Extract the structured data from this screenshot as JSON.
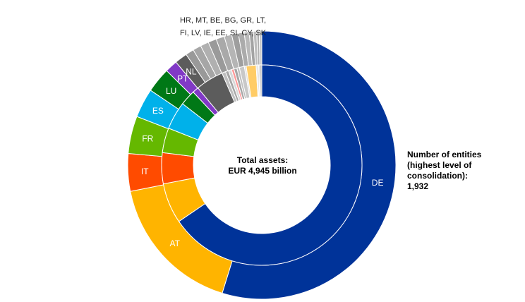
{
  "chart_data": {
    "type": "pie",
    "variant": "two-ring donut",
    "center_text": [
      "Total assets:",
      "EUR 4,945 billion"
    ],
    "side_text": [
      "Number of entities",
      "(highest level of",
      "consolidation):",
      "1,932"
    ],
    "small_countries_label": [
      "HR, MT, BE, BG, GR, LT,",
      "FI, LV, IE, EE, SI, CY, SK"
    ],
    "outer_ring": {
      "series": "Number of entities",
      "slices": [
        {
          "label": "DE",
          "value": 54.5,
          "color": "#003399",
          "labeled": true
        },
        {
          "label": "AT",
          "value": 17.0,
          "color": "#FFB400",
          "labeled": true
        },
        {
          "label": "IT",
          "value": 4.5,
          "color": "#FF4B00",
          "labeled": true
        },
        {
          "label": "FR",
          "value": 4.5,
          "color": "#65B800",
          "labeled": true
        },
        {
          "label": "ES",
          "value": 3.5,
          "color": "#00B1EA",
          "labeled": true
        },
        {
          "label": "LU",
          "value": 3.0,
          "color": "#007816",
          "labeled": true
        },
        {
          "label": "PT",
          "value": 1.5,
          "color": "#8139C6",
          "labeled": true
        },
        {
          "label": "NL",
          "value": 1.5,
          "color": "#5C5C5C",
          "labeled": true
        },
        {
          "label": "HR",
          "value": 1.0,
          "color": "#999999",
          "labeled": false
        },
        {
          "label": "MT",
          "value": 1.0,
          "color": "#A6A6A6",
          "labeled": false
        },
        {
          "label": "BE",
          "value": 1.0,
          "color": "#B0B0B0",
          "labeled": false
        },
        {
          "label": "BG",
          "value": 1.0,
          "color": "#9A9A9A",
          "labeled": false
        },
        {
          "label": "GR",
          "value": 1.0,
          "color": "#A9A9A9",
          "labeled": false
        },
        {
          "label": "LT",
          "value": 0.9,
          "color": "#B5B5B5",
          "labeled": false
        },
        {
          "label": "FI",
          "value": 0.8,
          "color": "#9E9E9E",
          "labeled": false
        },
        {
          "label": "LV",
          "value": 0.7,
          "color": "#ABABAB",
          "labeled": false
        },
        {
          "label": "IE",
          "value": 0.6,
          "color": "#B9B9B9",
          "labeled": false
        },
        {
          "label": "EE",
          "value": 0.5,
          "color": "#A3A3A3",
          "labeled": false
        },
        {
          "label": "SI",
          "value": 0.4,
          "color": "#BDBDBD",
          "labeled": false
        },
        {
          "label": "CY",
          "value": 0.3,
          "color": "#AFAFAF",
          "labeled": false
        },
        {
          "label": "SK",
          "value": 0.3,
          "color": "#C4C4C4",
          "labeled": false
        }
      ]
    },
    "inner_ring": {
      "series": "Total assets",
      "slices": [
        {
          "label": "DE",
          "value": 65.5,
          "color": "#003399"
        },
        {
          "label": "AT",
          "value": 6.5,
          "color": "#FFB400"
        },
        {
          "label": "IT",
          "value": 5.0,
          "color": "#FF4B00"
        },
        {
          "label": "FR",
          "value": 4.0,
          "color": "#65B800"
        },
        {
          "label": "ES",
          "value": 4.5,
          "color": "#00B1EA"
        },
        {
          "label": "LU",
          "value": 2.5,
          "color": "#007816"
        },
        {
          "label": "PT",
          "value": 1.0,
          "color": "#8139C6"
        },
        {
          "label": "NL",
          "value": 4.5,
          "color": "#5C5C5C"
        },
        {
          "label": "HR",
          "value": 0.6,
          "color": "#BFBFBF"
        },
        {
          "label": "MT",
          "value": 0.5,
          "color": "#A6A6A6"
        },
        {
          "label": "BE",
          "value": 0.5,
          "color": "#D9D9D9"
        },
        {
          "label": "BG",
          "value": 0.4,
          "color": "#FF9999"
        },
        {
          "label": "GR",
          "value": 0.5,
          "color": "#A6A6A6"
        },
        {
          "label": "LT",
          "value": 0.4,
          "color": "#BFBFBF"
        },
        {
          "label": "FI",
          "value": 0.8,
          "color": "#C8C8C8"
        },
        {
          "label": "LV",
          "value": 0.3,
          "color": "#E0E0E0"
        },
        {
          "label": "IE",
          "value": 1.6,
          "color": "#FFCC66"
        },
        {
          "label": "EE",
          "value": 0.2,
          "color": "#D9D9D9"
        },
        {
          "label": "SI",
          "value": 0.2,
          "color": "#C0C0C0"
        },
        {
          "label": "CY",
          "value": 0.2,
          "color": "#D0D0D0"
        },
        {
          "label": "SK",
          "value": 0.3,
          "color": "#B8B8B8"
        }
      ]
    }
  }
}
